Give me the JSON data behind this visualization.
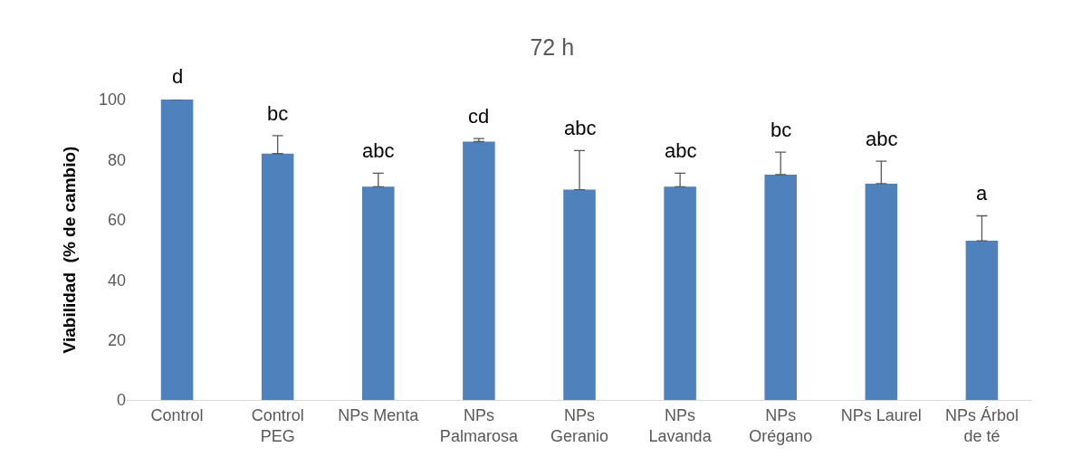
{
  "chart_data": {
    "type": "bar",
    "title": "72 h",
    "ylabel": "Viabilidad  (% de cambio)",
    "categories": [
      "Control",
      "Control\nPEG",
      "NPs Menta",
      "NPs\nPalmarosa",
      "NPs\nGeranio",
      "NPs\nLavanda",
      "NPs\nOrégano",
      "NPs Laurel",
      "NPs Árbol\nde té"
    ],
    "values": [
      100,
      82,
      71,
      86,
      70,
      71,
      75,
      72,
      53
    ],
    "errors": [
      [
        100,
        100.3
      ],
      [
        82,
        88
      ],
      [
        71,
        75.5
      ],
      [
        86,
        87
      ],
      [
        70,
        83
      ],
      [
        71,
        75.5
      ],
      [
        75,
        82.5
      ],
      [
        72,
        79.5
      ],
      [
        53,
        61.3
      ]
    ],
    "color": "#4f81bd",
    "ylim": [
      0,
      100
    ],
    "yticks": [
      0,
      20,
      40,
      60,
      80,
      100
    ],
    "annotations": [
      {
        "text": "d",
        "x": "Control",
        "y": 100.3
      },
      {
        "text": "bc",
        "x": "Control\nPEG",
        "y": 88
      },
      {
        "text": "abc",
        "x": "NPs Menta",
        "y": 75.5
      },
      {
        "text": "cd",
        "x": "NPs\nPalmarosa",
        "y": 87
      },
      {
        "text": "abc",
        "x": "NPs\nGeranio",
        "y": 83
      },
      {
        "text": "abc",
        "x": "NPs\nLavanda",
        "y": 75.5
      },
      {
        "text": "bc",
        "x": "NPs\nOrégano",
        "y": 82.5
      },
      {
        "text": "abc",
        "x": "NPs Laurel",
        "y": 79.5
      },
      {
        "text": "a",
        "x": "NPs Árbol\nde té",
        "y": 61.3
      }
    ]
  }
}
